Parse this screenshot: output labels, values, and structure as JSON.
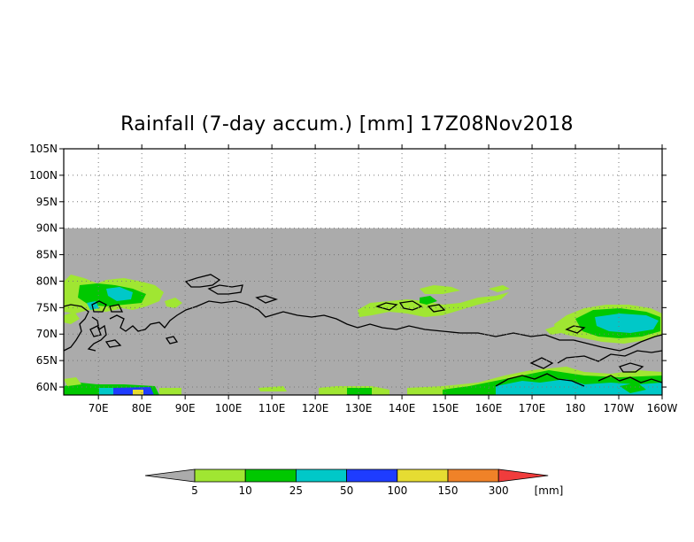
{
  "title": "Rainfall (7-day accum.) [mm] 17Z08Nov2018",
  "variable": "Rainfall (7-day accum.)",
  "units": "mm",
  "valid_time": "17Z08Nov2018",
  "map": {
    "lon_range": [
      62,
      200
    ],
    "lat_range": [
      58.5,
      105
    ],
    "data_lat_max": 90,
    "lat_ticks": [
      "60N",
      "65N",
      "70N",
      "75N",
      "80N",
      "85N",
      "90N",
      "95N",
      "100N",
      "105N"
    ],
    "lon_ticks": [
      "70E",
      "80E",
      "90E",
      "100E",
      "110E",
      "120E",
      "130E",
      "140E",
      "150E",
      "160E",
      "170E",
      "180",
      "170W",
      "160W"
    ],
    "grid": "dotted",
    "no_data_fill": "#ababab"
  },
  "colorbar": {
    "units_label": "[mm]",
    "tick_labels": [
      "5",
      "10",
      "25",
      "50",
      "100",
      "150",
      "300"
    ],
    "bins": [
      {
        "label": "<5",
        "color": "#ababab"
      },
      {
        "label": "5-10",
        "color": "#a0e632"
      },
      {
        "label": "10-25",
        "color": "#00c800"
      },
      {
        "label": "25-50",
        "color": "#00c8c8"
      },
      {
        "label": "50-100",
        "color": "#1e3cff"
      },
      {
        "label": "100-150",
        "color": "#e6dc32"
      },
      {
        "label": "150-300",
        "color": "#f08228"
      },
      {
        "label": ">300",
        "color": "#f03c3c"
      }
    ]
  }
}
